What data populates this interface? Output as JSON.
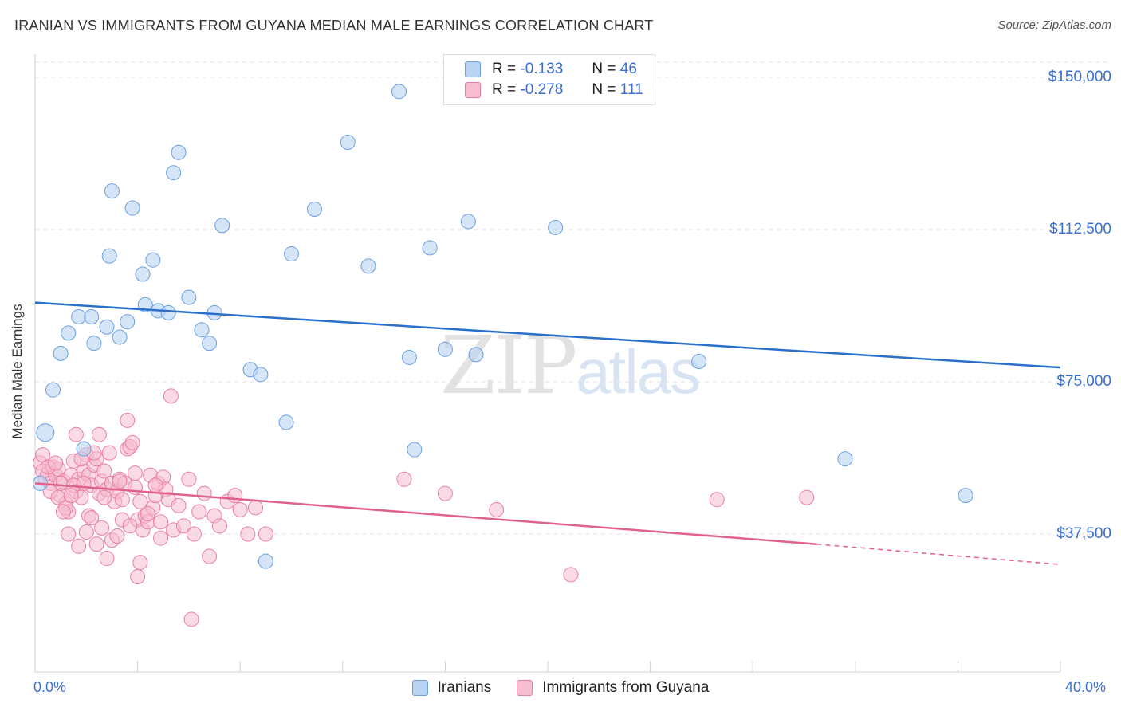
{
  "header": {
    "title": "IRANIAN VS IMMIGRANTS FROM GUYANA MEDIAN MALE EARNINGS CORRELATION CHART",
    "source": "Source: ZipAtlas.com"
  },
  "watermark": {
    "zip": "ZIP",
    "atlas": "atlas"
  },
  "colors": {
    "blue_fill": "#b9d3f3",
    "blue_stroke": "#6a9fe0",
    "blue_line": "#2a6fcc",
    "pink_fill": "#f6bcd0",
    "pink_stroke": "#e87fa3",
    "pink_line": "#e0608e",
    "axis_text": "#3a6fd0"
  },
  "legend_top": [
    {
      "r_label": "R =",
      "r_value": "-0.133",
      "n_label": "N =",
      "n_value": "46"
    },
    {
      "r_label": "R =",
      "r_value": "-0.278",
      "n_label": "N =",
      "n_value": "111"
    }
  ],
  "chart_data": {
    "type": "scatter",
    "title": "IRANIAN VS IMMIGRANTS FROM GUYANA MEDIAN MALE EARNINGS CORRELATION CHART",
    "ylabel": "Median Male Earnings",
    "xlabel": "",
    "x_tick_labels": [
      "0.0%",
      "40.0%"
    ],
    "y_tick_labels": [
      "$150,000",
      "$112,500",
      "$75,000",
      "$37,500"
    ],
    "y_ticks": [
      150000,
      112500,
      75000,
      37500
    ],
    "xlim": [
      0,
      40
    ],
    "ylim": [
      3000,
      155000
    ],
    "grid": true,
    "legend_position": "top-center",
    "series": [
      {
        "name": "Iranians",
        "r": -0.133,
        "n": 46,
        "trend": {
          "x0": 0,
          "y0": 94500,
          "x1": 40,
          "y1": 78500
        },
        "points": [
          [
            0.7,
            73000
          ],
          [
            1.0,
            82000
          ],
          [
            1.3,
            87000
          ],
          [
            1.7,
            91000
          ],
          [
            1.9,
            58500
          ],
          [
            2.2,
            91000
          ],
          [
            2.3,
            84500
          ],
          [
            2.9,
            106000
          ],
          [
            3.0,
            122000
          ],
          [
            3.3,
            86000
          ],
          [
            3.6,
            89800
          ],
          [
            3.8,
            117800
          ],
          [
            4.2,
            101500
          ],
          [
            4.3,
            94000
          ],
          [
            4.6,
            105000
          ],
          [
            4.8,
            92500
          ],
          [
            5.2,
            92000
          ],
          [
            5.4,
            126500
          ],
          [
            5.6,
            131500
          ],
          [
            6.0,
            95800
          ],
          [
            6.5,
            87800
          ],
          [
            6.8,
            84500
          ],
          [
            7.0,
            92000
          ],
          [
            7.3,
            113500
          ],
          [
            8.4,
            78000
          ],
          [
            8.8,
            76800
          ],
          [
            9.0,
            30800
          ],
          [
            9.8,
            65000
          ],
          [
            10.0,
            106500
          ],
          [
            10.9,
            117500
          ],
          [
            12.2,
            134000
          ],
          [
            13.0,
            103500
          ],
          [
            14.2,
            146500
          ],
          [
            14.6,
            81000
          ],
          [
            14.8,
            58300
          ],
          [
            15.4,
            108000
          ],
          [
            16.0,
            83000
          ],
          [
            16.9,
            114500
          ],
          [
            17.2,
            81700
          ],
          [
            20.3,
            113000
          ],
          [
            25.9,
            80000
          ],
          [
            31.6,
            56000
          ],
          [
            36.3,
            47000
          ],
          [
            2.8,
            88500
          ],
          [
            0.4,
            62500
          ],
          [
            0.2,
            50000
          ]
        ]
      },
      {
        "name": "Immigrants from Guyana",
        "r": -0.278,
        "n": 111,
        "trend": {
          "x0": 0,
          "y0": 50000,
          "x1": 30.5,
          "y1": 35000,
          "dash_x1": 40,
          "dash_y1": 30000
        },
        "points": [
          [
            0.2,
            55000
          ],
          [
            0.3,
            53000
          ],
          [
            0.4,
            51000
          ],
          [
            0.5,
            52500
          ],
          [
            0.6,
            50000
          ],
          [
            0.7,
            54000
          ],
          [
            0.8,
            52000
          ],
          [
            0.9,
            53500
          ],
          [
            1.0,
            47000
          ],
          [
            1.1,
            50500
          ],
          [
            1.2,
            45000
          ],
          [
            1.3,
            43000
          ],
          [
            1.4,
            52000
          ],
          [
            1.5,
            55500
          ],
          [
            1.6,
            48000
          ],
          [
            1.7,
            51000
          ],
          [
            1.8,
            46500
          ],
          [
            1.9,
            53000
          ],
          [
            2.0,
            57000
          ],
          [
            2.1,
            52000
          ],
          [
            2.2,
            49500
          ],
          [
            2.3,
            54500
          ],
          [
            2.4,
            56000
          ],
          [
            2.5,
            47500
          ],
          [
            2.6,
            50500
          ],
          [
            2.7,
            53000
          ],
          [
            2.8,
            48500
          ],
          [
            2.9,
            57500
          ],
          [
            3.0,
            50000
          ],
          [
            3.1,
            45500
          ],
          [
            3.2,
            48000
          ],
          [
            3.3,
            51000
          ],
          [
            3.4,
            46000
          ],
          [
            3.5,
            50000
          ],
          [
            3.6,
            58500
          ],
          [
            3.7,
            59000
          ],
          [
            3.8,
            60000
          ],
          [
            3.9,
            49000
          ],
          [
            4.0,
            41000
          ],
          [
            4.1,
            45500
          ],
          [
            4.2,
            38500
          ],
          [
            4.3,
            42000
          ],
          [
            4.4,
            40500
          ],
          [
            4.5,
            52000
          ],
          [
            4.6,
            44000
          ],
          [
            4.7,
            47000
          ],
          [
            4.8,
            50000
          ],
          [
            4.9,
            36500
          ],
          [
            5.0,
            51500
          ],
          [
            5.1,
            48500
          ],
          [
            5.2,
            46000
          ],
          [
            5.3,
            71500
          ],
          [
            5.4,
            38500
          ],
          [
            5.6,
            44500
          ],
          [
            5.8,
            39500
          ],
          [
            6.0,
            51000
          ],
          [
            6.2,
            37500
          ],
          [
            6.4,
            43000
          ],
          [
            6.6,
            47500
          ],
          [
            6.8,
            32000
          ],
          [
            7.0,
            42000
          ],
          [
            7.2,
            39500
          ],
          [
            7.5,
            45500
          ],
          [
            7.8,
            47000
          ],
          [
            8.0,
            43500
          ],
          [
            8.3,
            37500
          ],
          [
            8.6,
            44000
          ],
          [
            9.0,
            37500
          ],
          [
            2.0,
            38000
          ],
          [
            2.4,
            35000
          ],
          [
            2.6,
            39000
          ],
          [
            2.8,
            31500
          ],
          [
            3.0,
            36000
          ],
          [
            3.2,
            37000
          ],
          [
            3.4,
            41000
          ],
          [
            3.7,
            39500
          ],
          [
            4.1,
            30500
          ],
          [
            4.0,
            27000
          ],
          [
            4.9,
            40500
          ],
          [
            6.1,
            16500
          ],
          [
            1.7,
            34500
          ],
          [
            1.3,
            37500
          ],
          [
            2.1,
            42000
          ],
          [
            3.6,
            65500
          ],
          [
            1.6,
            62000
          ],
          [
            2.5,
            62000
          ],
          [
            3.9,
            52500
          ],
          [
            2.2,
            41500
          ],
          [
            1.0,
            50000
          ],
          [
            0.6,
            48000
          ],
          [
            0.9,
            46500
          ],
          [
            1.2,
            44000
          ],
          [
            1.5,
            49500
          ],
          [
            1.8,
            56000
          ],
          [
            2.3,
            57500
          ],
          [
            14.4,
            51000
          ],
          [
            16.0,
            47500
          ],
          [
            18.0,
            43500
          ],
          [
            20.9,
            27500
          ],
          [
            26.6,
            46000
          ],
          [
            30.1,
            46500
          ],
          [
            0.3,
            57000
          ],
          [
            0.5,
            54000
          ],
          [
            0.8,
            55000
          ],
          [
            1.1,
            43000
          ],
          [
            1.4,
            47000
          ],
          [
            1.9,
            50000
          ],
          [
            2.7,
            46500
          ],
          [
            3.3,
            50500
          ],
          [
            4.4,
            42500
          ],
          [
            4.7,
            49500
          ]
        ]
      }
    ]
  },
  "axis_labels": {
    "y_title": "Median Male Earnings",
    "x_left": "0.0%",
    "x_right": "40.0%",
    "y_150": "$150,000",
    "y_112": "$112,500",
    "y_75": "$75,000",
    "y_37": "$37,500"
  },
  "bottom_legend": {
    "series_1": "Iranians",
    "series_2": "Immigrants from Guyana"
  }
}
